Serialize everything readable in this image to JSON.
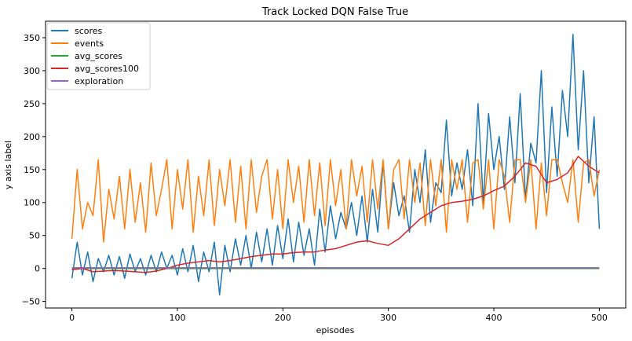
{
  "chart_data": {
    "type": "line",
    "title": "Track Locked DQN False True",
    "xlabel": "episodes",
    "ylabel": "y axis label",
    "xlim": [
      -25,
      525
    ],
    "ylim": [
      -60,
      375
    ],
    "xticks": [
      0,
      100,
      200,
      300,
      400,
      500
    ],
    "yticks": [
      -50,
      0,
      50,
      100,
      150,
      200,
      250,
      300,
      350
    ],
    "legend_position": "top-left",
    "grid": false,
    "series": [
      {
        "name": "scores",
        "color": "#1f77b4",
        "x": [
          0,
          5,
          10,
          15,
          20,
          25,
          30,
          35,
          40,
          45,
          50,
          55,
          60,
          65,
          70,
          75,
          80,
          85,
          90,
          95,
          100,
          105,
          110,
          115,
          120,
          125,
          130,
          135,
          140,
          145,
          150,
          155,
          160,
          165,
          170,
          175,
          180,
          185,
          190,
          195,
          200,
          205,
          210,
          215,
          220,
          225,
          230,
          235,
          240,
          245,
          250,
          255,
          260,
          265,
          270,
          275,
          280,
          285,
          290,
          295,
          300,
          305,
          310,
          315,
          320,
          325,
          330,
          335,
          340,
          345,
          350,
          355,
          360,
          365,
          370,
          375,
          380,
          385,
          390,
          395,
          400,
          405,
          410,
          415,
          420,
          425,
          430,
          435,
          440,
          445,
          450,
          455,
          460,
          465,
          470,
          475,
          480,
          485,
          490,
          495,
          500
        ],
        "values": [
          -15,
          40,
          -10,
          25,
          -20,
          15,
          -5,
          20,
          -10,
          18,
          -15,
          22,
          -5,
          15,
          -10,
          20,
          -5,
          25,
          0,
          20,
          -10,
          30,
          -5,
          35,
          -20,
          25,
          -5,
          40,
          -40,
          35,
          -5,
          45,
          5,
          50,
          0,
          55,
          10,
          60,
          5,
          65,
          15,
          75,
          10,
          70,
          20,
          60,
          5,
          90,
          25,
          95,
          45,
          85,
          60,
          100,
          50,
          110,
          40,
          120,
          55,
          160,
          60,
          130,
          80,
          110,
          55,
          150,
          100,
          180,
          70,
          130,
          115,
          225,
          110,
          160,
          120,
          180,
          95,
          250,
          100,
          235,
          150,
          200,
          120,
          230,
          130,
          265,
          105,
          190,
          160,
          300,
          115,
          245,
          140,
          270,
          200,
          355,
          180,
          300,
          130,
          230,
          60
        ]
      },
      {
        "name": "events",
        "color": "#ff7f0e",
        "x": [
          0,
          5,
          10,
          15,
          20,
          25,
          30,
          35,
          40,
          45,
          50,
          55,
          60,
          65,
          70,
          75,
          80,
          85,
          90,
          95,
          100,
          105,
          110,
          115,
          120,
          125,
          130,
          135,
          140,
          145,
          150,
          155,
          160,
          165,
          170,
          175,
          180,
          185,
          190,
          195,
          200,
          205,
          210,
          215,
          220,
          225,
          230,
          235,
          240,
          245,
          250,
          255,
          260,
          265,
          270,
          275,
          280,
          285,
          290,
          295,
          300,
          305,
          310,
          315,
          320,
          325,
          330,
          335,
          340,
          345,
          350,
          355,
          360,
          365,
          370,
          375,
          380,
          385,
          390,
          395,
          400,
          405,
          410,
          415,
          420,
          425,
          430,
          435,
          440,
          445,
          450,
          455,
          460,
          465,
          470,
          475,
          480,
          485,
          490,
          495,
          500
        ],
        "values": [
          45,
          150,
          60,
          100,
          80,
          165,
          40,
          120,
          75,
          140,
          60,
          150,
          70,
          130,
          55,
          160,
          80,
          120,
          165,
          60,
          150,
          90,
          165,
          55,
          140,
          80,
          165,
          65,
          150,
          95,
          165,
          70,
          155,
          60,
          165,
          85,
          140,
          165,
          75,
          150,
          60,
          165,
          100,
          155,
          70,
          165,
          80,
          160,
          65,
          165,
          95,
          150,
          60,
          165,
          110,
          155,
          70,
          165,
          90,
          165,
          60,
          150,
          165,
          75,
          165,
          100,
          160,
          65,
          165,
          95,
          165,
          55,
          165,
          120,
          165,
          70,
          160,
          165,
          90,
          165,
          60,
          165,
          140,
          70,
          165,
          165,
          100,
          165,
          60,
          160,
          80,
          165,
          165,
          130,
          100,
          165,
          70,
          160,
          165,
          110,
          150
        ]
      },
      {
        "name": "avg_scores",
        "color": "#2ca02c",
        "x": [
          0,
          100,
          200,
          300,
          400,
          500
        ],
        "values": [
          0,
          0,
          0,
          0,
          0,
          0
        ]
      },
      {
        "name": "avg_scores100",
        "color": "#d62728",
        "x": [
          0,
          10,
          20,
          30,
          40,
          50,
          60,
          70,
          80,
          90,
          100,
          110,
          120,
          130,
          140,
          150,
          160,
          170,
          180,
          190,
          200,
          210,
          220,
          230,
          240,
          250,
          260,
          270,
          280,
          290,
          300,
          310,
          320,
          330,
          340,
          350,
          360,
          370,
          380,
          390,
          400,
          410,
          420,
          430,
          440,
          450,
          460,
          470,
          480,
          490,
          500
        ],
        "values": [
          -2,
          0,
          -5,
          -4,
          -3,
          -4,
          -5,
          -6,
          -4,
          0,
          5,
          8,
          10,
          12,
          10,
          12,
          15,
          18,
          20,
          22,
          22,
          24,
          25,
          25,
          28,
          30,
          35,
          40,
          42,
          38,
          35,
          45,
          60,
          75,
          85,
          95,
          100,
          102,
          105,
          110,
          118,
          125,
          140,
          160,
          155,
          130,
          135,
          145,
          170,
          155,
          145
        ]
      },
      {
        "name": "exploration",
        "color": "#9467bd",
        "x": [
          0,
          100,
          200,
          300,
          400,
          500
        ],
        "values": [
          1,
          1,
          1,
          1,
          1,
          1
        ]
      }
    ]
  }
}
